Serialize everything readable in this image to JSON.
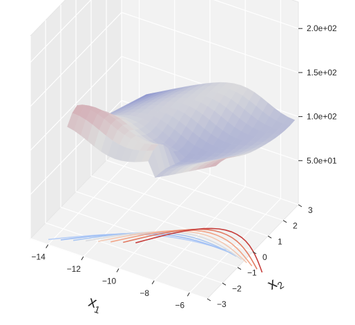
{
  "chart_data": {
    "type": "surface3d",
    "title": "",
    "xlabel": "x",
    "xlabel_sub": "1",
    "ylabel": "x",
    "ylabel_sub": "2",
    "zlabel": "",
    "x_ticks": [
      "−14",
      "−12",
      "−10",
      "−8",
      "−6"
    ],
    "y_ticks": [
      "−3",
      "−2",
      "−1",
      "0",
      "1",
      "2",
      "3"
    ],
    "z_ticks": [
      "5.0e+01",
      "1.0e+02",
      "1.5e+02",
      "2.0e+02"
    ],
    "xlim": [
      -15,
      -5
    ],
    "ylim": [
      -3,
      3
    ],
    "zlim": [
      0,
      230
    ],
    "colormap": "coolwarm",
    "grid": true,
    "contour_offset": "floor",
    "contour_levels": [
      {
        "z": 5,
        "color": "#b8cff7"
      },
      {
        "z": 12,
        "color": "#9ebef5"
      },
      {
        "z": 25,
        "color": "#aac7f2"
      },
      {
        "z": 45,
        "color": "#dbdcdf"
      },
      {
        "z": 70,
        "color": "#f2c9b4"
      },
      {
        "z": 100,
        "color": "#f1a487"
      },
      {
        "z": 140,
        "color": "#e27a62"
      },
      {
        "z": 185,
        "color": "#c63d3b"
      }
    ]
  },
  "colors": {
    "pane": "#f2f2f2",
    "pane_side": "#ebebeb",
    "grid": "#ffffff",
    "cmap_low": "#3b4cc0",
    "cmap_mid": "#dddddd",
    "cmap_high": "#b40426"
  }
}
